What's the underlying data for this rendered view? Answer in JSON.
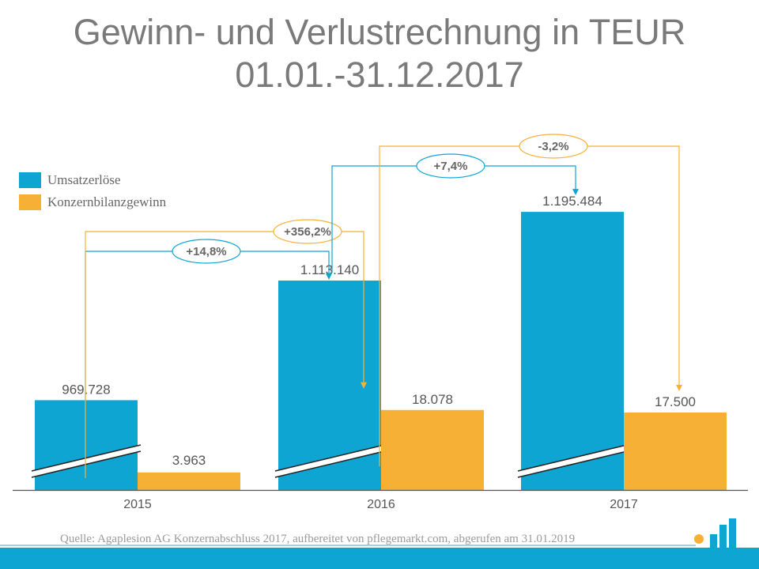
{
  "title_line1": "Gewinn- und Verlustrechnung in TEUR",
  "title_line2": "01.01.-31.12.2017",
  "source": "Quelle: Agaplesion AG Konzernabschluss 2017, aufbereitet von pflegemarkt.com, abgerufen am 31.01.2019",
  "colors": {
    "revenue": "#0ea5d3",
    "profit": "#f7b036",
    "axis": "#555555",
    "text": "#666666",
    "title": "#7a7a7a"
  },
  "chart_data": {
    "type": "bar",
    "categories": [
      "2015",
      "2016",
      "2017"
    ],
    "series": [
      {
        "name": "Umsatzerlöse",
        "values": [
          969728,
          1113140,
          1195484
        ],
        "labels": [
          "969.728",
          "1.113.140",
          "1.195.484"
        ],
        "color": "#0ea5d3",
        "broken_axis": true
      },
      {
        "name": "Konzernbilanzgewinn",
        "values": [
          3963,
          18078,
          17500
        ],
        "labels": [
          "3.963",
          "18.078",
          "17.500"
        ],
        "color": "#f7b036"
      }
    ],
    "annotations": [
      {
        "series": "Umsatzerlöse",
        "from": "2015",
        "to": "2016",
        "label": "+14,8%"
      },
      {
        "series": "Konzernbilanzgewinn",
        "from": "2015",
        "to": "2016",
        "label": "+356,2%"
      },
      {
        "series": "Umsatzerlöse",
        "from": "2016",
        "to": "2017",
        "label": "+7,4%"
      },
      {
        "series": "Konzernbilanzgewinn",
        "from": "2016",
        "to": "2017",
        "label": "-3,2%"
      }
    ],
    "legend_position": "top-left",
    "grid": false
  }
}
